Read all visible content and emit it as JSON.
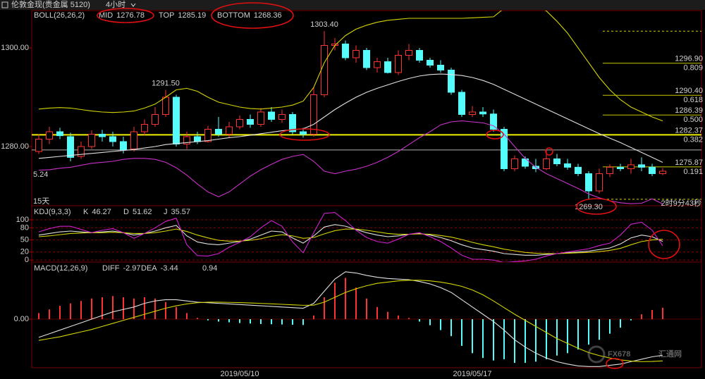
{
  "header": {
    "title": "伦敦金现(贵金属 5120)",
    "period": "4小时"
  },
  "notes": {
    "left_value": 5.24,
    "left_period": "15天",
    "countdown": "2时9分43秒"
  },
  "watermark": {
    "brand": "FX678",
    "name": "汇通网"
  },
  "chart_data": [
    {
      "type": "candlestick",
      "indicator": "BOLL(26,26,2)",
      "ylim": [
        1268,
        1307.57
      ],
      "yticks": [
        {
          "value": 1300,
          "label": "1300.00"
        },
        {
          "value": 1280,
          "label": "1280.00"
        }
      ],
      "up_color": "#ff3232",
      "down_color": "#54fcfc",
      "open": [
        1279,
        1281.5,
        1283,
        1282,
        1278,
        1280,
        1282.5,
        1282,
        1281,
        1279.5,
        1283,
        1284.5,
        1286.5,
        1290,
        1280.5,
        1282,
        1281,
        1283.5,
        1282.5,
        1284,
        1285.5,
        1284.5,
        1287,
        1285.5,
        1286.5,
        1283,
        1282.5,
        1290.5,
        1300.5,
        1300.8,
        1298,
        1299.5,
        1296,
        1297.2,
        1295,
        1298.5,
        1299.5,
        1297.5,
        1296.5,
        1295.5,
        1291,
        1286.5,
        1287,
        1286.6,
        1283.5,
        1275.5,
        1277.5,
        1276,
        1275.5,
        1277.5,
        1276.5,
        1275.8,
        1274.5,
        1271,
        1274.5,
        1275.8,
        1275.5,
        1276.3,
        1275.8,
        1274.5
      ],
      "high": [
        1282.5,
        1284,
        1283.8,
        1282.8,
        1281,
        1283.3,
        1283.4,
        1283,
        1282,
        1284,
        1285.5,
        1288,
        1291.5,
        1290.5,
        1283,
        1283,
        1284.2,
        1286,
        1285,
        1286.3,
        1286.5,
        1287.8,
        1288,
        1287.5,
        1287,
        1283.8,
        1292,
        1303.4,
        1302,
        1301.5,
        1300.5,
        1300,
        1298,
        1298,
        1299.5,
        1300.8,
        1300,
        1298,
        1297.5,
        1296,
        1291.5,
        1288.2,
        1288,
        1287.5,
        1284,
        1278.2,
        1278,
        1277.5,
        1279.4,
        1278.5,
        1277.5,
        1276.5,
        1275,
        1275.5,
        1276.4,
        1276.5,
        1277.5,
        1277.8,
        1276.5,
        1275.6
      ],
      "low": [
        1278.5,
        1280.5,
        1281.5,
        1277,
        1277.5,
        1279.5,
        1281,
        1280,
        1278.6,
        1279,
        1282.3,
        1284,
        1286,
        1280,
        1279.5,
        1280.5,
        1280.8,
        1282,
        1281.8,
        1283.5,
        1283.8,
        1284,
        1285,
        1284.8,
        1282.5,
        1281.8,
        1282,
        1290,
        1299.5,
        1297.5,
        1297,
        1295.5,
        1295,
        1294.8,
        1294.5,
        1297.5,
        1297,
        1296,
        1295,
        1290.5,
        1286,
        1286,
        1286,
        1283,
        1275,
        1275,
        1275.5,
        1274.8,
        1275.2,
        1276,
        1275.3,
        1274,
        1269.3,
        1270.5,
        1273.8,
        1275,
        1274.5,
        1275,
        1274,
        1274.2
      ],
      "close": [
        1281.5,
        1283,
        1282.2,
        1277.8,
        1280,
        1282.5,
        1282,
        1281,
        1279.3,
        1283,
        1284.5,
        1286.5,
        1290,
        1280.5,
        1282,
        1281,
        1283.5,
        1282.5,
        1284,
        1285.5,
        1284.5,
        1287,
        1285.5,
        1286.5,
        1283,
        1282.5,
        1290.5,
        1300.5,
        1300.8,
        1298,
        1299.5,
        1296,
        1297.2,
        1295,
        1298.5,
        1299.5,
        1297.5,
        1296.5,
        1295.5,
        1291,
        1286.5,
        1287,
        1286.6,
        1283.5,
        1275.5,
        1277.5,
        1276,
        1275.5,
        1277.5,
        1276.5,
        1275.8,
        1274.5,
        1271,
        1274.5,
        1275.8,
        1275.5,
        1276.3,
        1275.8,
        1274.5,
        1275
      ],
      "series": [
        {
          "name": "MID",
          "color": "#e0e0e0",
          "values": [
            1277.6,
            1277.8,
            1278,
            1278.2,
            1278.4,
            1278.6,
            1278.8,
            1279,
            1279.2,
            1279.4,
            1279.7,
            1280,
            1280.4,
            1280.6,
            1280.8,
            1281,
            1281.2,
            1281.5,
            1281.8,
            1282,
            1282.3,
            1282.6,
            1282.9,
            1283.2,
            1283.4,
            1283.6,
            1284.5,
            1286,
            1287.5,
            1288.8,
            1290,
            1291,
            1291.8,
            1292.5,
            1293.2,
            1293.8,
            1294.3,
            1294.6,
            1294.7,
            1294.6,
            1294.4,
            1294,
            1293.4,
            1292.6,
            1291.6,
            1290.6,
            1289.6,
            1288.6,
            1287.6,
            1286.6,
            1285.6,
            1284.6,
            1283.6,
            1282.6,
            1281.7,
            1280.8,
            1279.8,
            1278.8,
            1277.8,
            1276.78
          ]
        },
        {
          "name": "TOP",
          "color": "#d4d400",
          "values": [
            1287.6,
            1287.8,
            1287.9,
            1287.8,
            1287.5,
            1287.2,
            1287,
            1286.9,
            1287,
            1287.2,
            1287.8,
            1288.6,
            1290,
            1291.5,
            1291.8,
            1291.2,
            1290,
            1289,
            1288.5,
            1288,
            1287.7,
            1287.6,
            1287.8,
            1288,
            1288.4,
            1289.2,
            1292,
            1297,
            1300.5,
            1302.5,
            1303.8,
            1304.6,
            1305.2,
            1305.6,
            1305.8,
            1306,
            1306,
            1306,
            1306,
            1306,
            1306,
            1306.1,
            1306.2,
            1306.3,
            1308,
            1308.6,
            1308.8,
            1308.4,
            1307.5,
            1305.4,
            1303,
            1300,
            1297,
            1294,
            1291.5,
            1289.5,
            1288,
            1287,
            1286,
            1285.19
          ]
        },
        {
          "name": "BOTTOM",
          "color": "#c832c8",
          "values": [
            1275.2,
            1275.3,
            1275.6,
            1275.8,
            1276.2,
            1276.6,
            1276.8,
            1277,
            1277.4,
            1277.6,
            1277.6,
            1277.4,
            1276.8,
            1275.7,
            1274.2,
            1272.4,
            1270.8,
            1269.8,
            1270.8,
            1272.4,
            1274,
            1275.3,
            1276.4,
            1277.4,
            1278,
            1278.4,
            1277,
            1275,
            1274.5,
            1275,
            1275.4,
            1276,
            1276.8,
            1277.8,
            1279,
            1280.4,
            1281.8,
            1283,
            1284.4,
            1285,
            1285.2,
            1285,
            1284.8,
            1284.2,
            1282.5,
            1280,
            1277.6,
            1275.8,
            1274.5,
            1273.5,
            1272.5,
            1271.5,
            1270.4,
            1269.6,
            1269,
            1268.6,
            1268.4,
            1268.5,
            1269.4,
            1268.36
          ]
        }
      ],
      "annotations": [
        {
          "value": 1291.5,
          "label": "1291.50"
        },
        {
          "value": 1303.4,
          "label": "1303.40"
        },
        {
          "value": 1269.3,
          "label": "1269.30"
        }
      ],
      "fib_levels": [
        {
          "value": 1296.9,
          "label": "1296.90",
          "ratio": "0.809"
        },
        {
          "value": 1290.4,
          "label": "1290.40",
          "ratio": "0.618"
        },
        {
          "value": 1286.39,
          "label": "1286.39",
          "ratio": "0.500"
        },
        {
          "value": 1282.37,
          "label": "1282.37",
          "ratio": "0.382",
          "extended": true
        },
        {
          "value": 1275.87,
          "label": "1275.87",
          "ratio": "0.191"
        }
      ],
      "fib_range": [
        1303.4,
        1269.3
      ],
      "hlines": [
        1279.3
      ]
    },
    {
      "type": "line",
      "indicator": "KDJ(9,3,3)",
      "ylim": [
        -5,
        135
      ],
      "yticks": [
        100,
        80,
        50,
        20,
        0
      ],
      "grid": true,
      "series": [
        {
          "name": "K",
          "color": "#e0e0e0",
          "values": [
            62,
            66,
            70,
            72,
            70,
            68,
            70,
            72,
            68,
            62,
            66,
            72,
            80,
            86,
            60,
            45,
            40,
            38,
            42,
            46,
            52,
            62,
            72,
            70,
            55,
            42,
            60,
            82,
            88,
            84,
            76,
            68,
            62,
            58,
            60,
            64,
            66,
            62,
            56,
            48,
            38,
            30,
            26,
            22,
            16,
            14,
            12,
            12,
            14,
            16,
            18,
            20,
            22,
            26,
            30,
            40,
            55,
            62,
            58,
            46.27
          ]
        },
        {
          "name": "D",
          "color": "#d4d400",
          "values": [
            58,
            60,
            63,
            66,
            67,
            68,
            68,
            69,
            68,
            66,
            66,
            68,
            72,
            77,
            71,
            62,
            55,
            49,
            47,
            47,
            49,
            53,
            59,
            63,
            60,
            54,
            56,
            65,
            73,
            77,
            77,
            74,
            70,
            66,
            64,
            64,
            65,
            64,
            61,
            57,
            51,
            44,
            38,
            33,
            27,
            23,
            19,
            17,
            16,
            16,
            17,
            18,
            19,
            21,
            24,
            29,
            38,
            46,
            50,
            51.62
          ]
        },
        {
          "name": "J",
          "color": "#d020d0",
          "values": [
            70,
            78,
            84,
            84,
            76,
            68,
            74,
            78,
            68,
            54,
            66,
            80,
            96,
            104,
            38,
            11,
            10,
            16,
            32,
            44,
            58,
            80,
            98,
            84,
            45,
            18,
            68,
            116,
            118,
            98,
            74,
            56,
            46,
            42,
            52,
            64,
            68,
            58,
            46,
            30,
            12,
            2,
            2,
            0,
            -6,
            -4,
            -2,
            2,
            10,
            16,
            20,
            24,
            28,
            36,
            42,
            62,
            89,
            94,
            74,
            35.57
          ]
        }
      ]
    },
    {
      "type": "macd",
      "indicator": "MACD(12,26,9)",
      "ylim": [
        -4,
        4.7
      ],
      "yticks": [
        {
          "value": 0,
          "label": "0.00"
        }
      ],
      "categories": [
        null,
        null,
        null,
        null,
        null,
        null,
        null,
        null,
        null,
        null,
        null,
        null,
        null,
        null,
        null,
        null,
        null,
        null,
        null,
        "2019/05/10",
        null,
        null,
        null,
        null,
        null,
        null,
        null,
        null,
        null,
        null,
        null,
        null,
        null,
        null,
        null,
        null,
        null,
        null,
        null,
        null,
        null,
        "2019/05/17",
        null,
        null,
        null,
        null,
        null,
        null,
        null,
        null,
        null,
        null,
        null,
        null,
        null,
        null,
        null,
        null,
        null,
        null
      ],
      "series": [
        {
          "name": "DIFF",
          "color": "#e0e0e0",
          "values": [
            -1.5,
            -1.2,
            -0.9,
            -0.6,
            -0.3,
            0,
            0.3,
            0.6,
            0.8,
            1.0,
            1.3,
            1.5,
            1.6,
            1.6,
            1.5,
            1.4,
            1.35,
            1.3,
            1.25,
            1.2,
            1.15,
            1.1,
            1.05,
            1.0,
            0.95,
            0.9,
            1.3,
            2.3,
            3.3,
            3.9,
            3.8,
            3.6,
            3.45,
            3.35,
            3.3,
            3.25,
            3.1,
            2.9,
            2.6,
            2.2,
            1.6,
            1.0,
            0.4,
            -0.2,
            -0.9,
            -1.7,
            -2.3,
            -2.8,
            -3.2,
            -3.5,
            -3.7,
            -3.85,
            -3.9,
            -3.9,
            -3.8,
            -3.7,
            -3.5,
            -3.3,
            -3.1,
            -2.97
          ]
        },
        {
          "name": "DEA",
          "color": "#d4d400",
          "values": [
            -1.75,
            -1.6,
            -1.45,
            -1.25,
            -1.05,
            -0.85,
            -0.6,
            -0.35,
            -0.1,
            0.15,
            0.4,
            0.65,
            0.9,
            1.1,
            1.25,
            1.35,
            1.4,
            1.4,
            1.38,
            1.36,
            1.33,
            1.3,
            1.26,
            1.22,
            1.18,
            1.14,
            1.15,
            1.4,
            1.8,
            2.2,
            2.5,
            2.75,
            2.95,
            3.05,
            3.15,
            3.2,
            3.2,
            3.15,
            3.05,
            2.9,
            2.7,
            2.4,
            2.0,
            1.5,
            0.95,
            0.4,
            -0.1,
            -0.6,
            -1.1,
            -1.6,
            -2.0,
            -2.4,
            -2.75,
            -3.0,
            -3.2,
            -3.35,
            -3.45,
            -3.5,
            -3.48,
            -3.44
          ]
        }
      ],
      "bars": {
        "up_color": "#ff3232",
        "down_color": "#54fcfc",
        "values": [
          0.5,
          0.8,
          1.1,
          1.3,
          1.5,
          1.7,
          1.8,
          1.9,
          1.8,
          1.7,
          1.8,
          1.7,
          1.4,
          1.0,
          0.5,
          0.1,
          -0.1,
          -0.2,
          -0.26,
          -0.32,
          -0.36,
          -0.4,
          -0.42,
          -0.44,
          -0.46,
          -0.48,
          0.3,
          1.8,
          3.0,
          3.4,
          2.6,
          1.7,
          1.0,
          0.6,
          0.3,
          0.1,
          -0.2,
          -0.5,
          -0.9,
          -1.4,
          -2.2,
          -2.8,
          -3.2,
          -3.4,
          -3.3,
          -3.6,
          -3.6,
          -3.5,
          -3.3,
          -3.0,
          -2.8,
          -2.5,
          -2.1,
          -1.7,
          -1.2,
          -0.7,
          -0.1,
          0.4,
          0.76,
          0.94
        ]
      }
    }
  ]
}
